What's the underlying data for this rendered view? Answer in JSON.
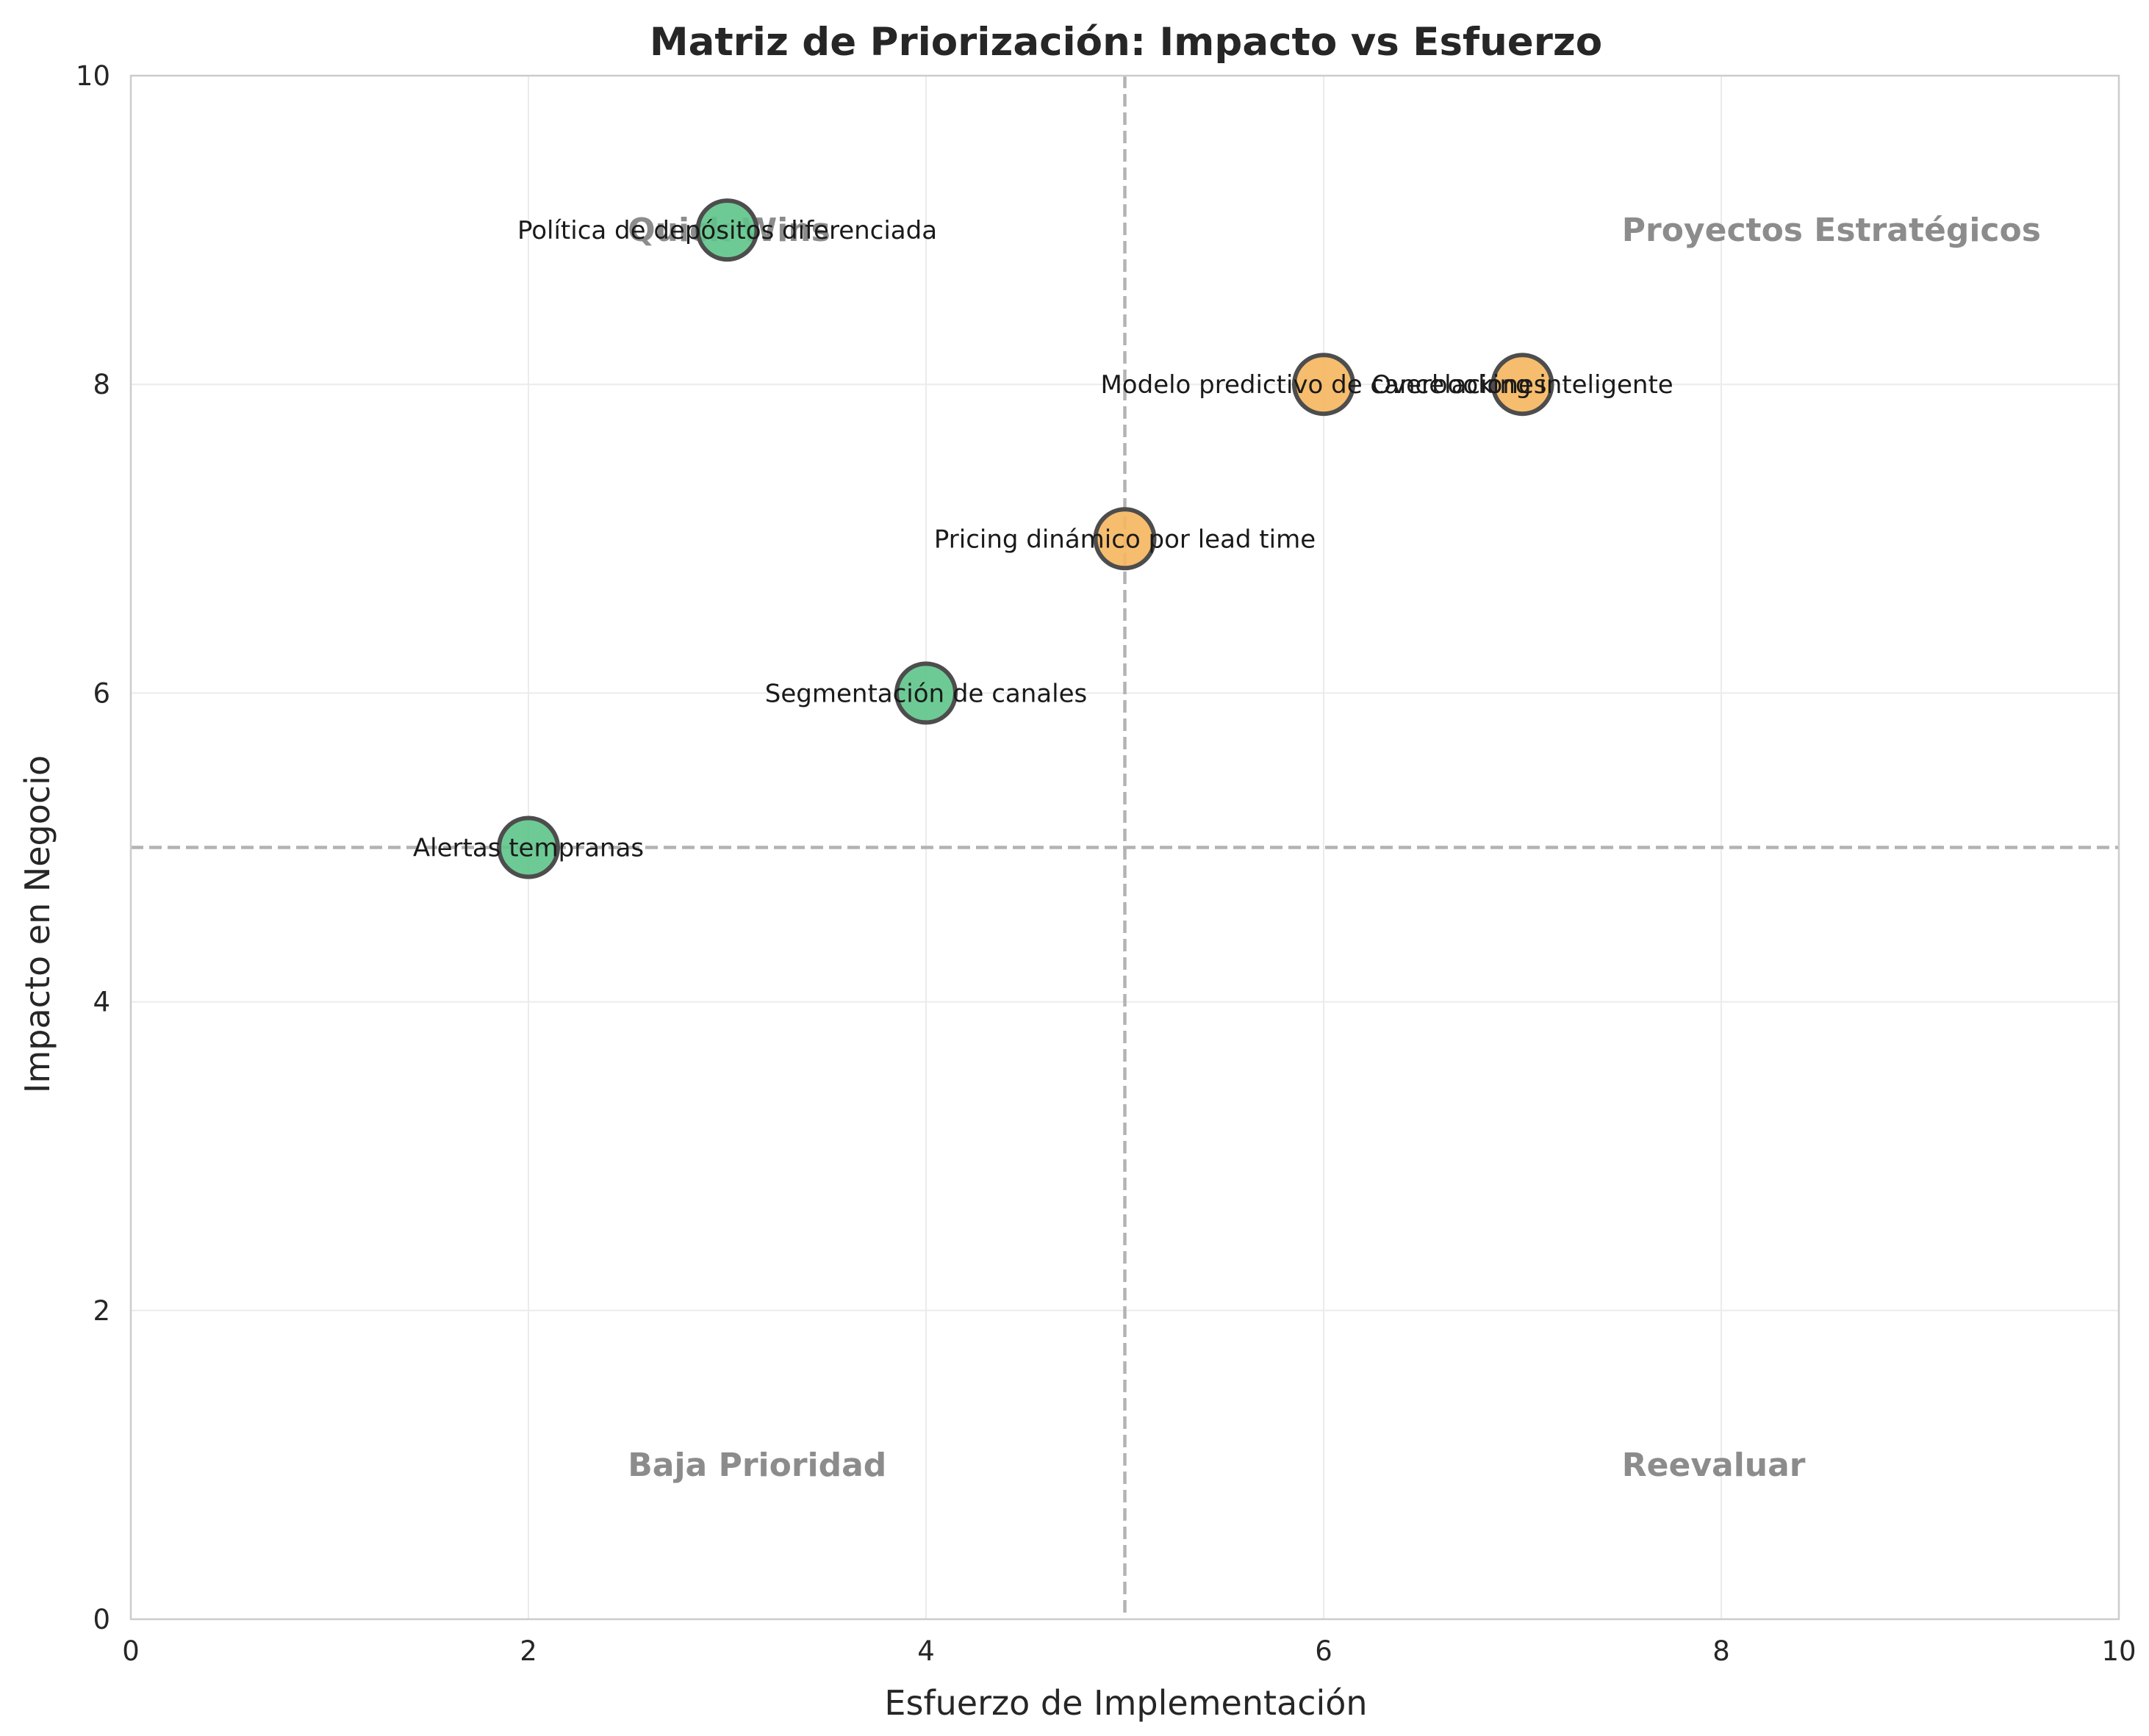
{
  "chart_data": {
    "type": "scatter",
    "title": "Matriz de Priorización: Impacto vs Esfuerzo",
    "xlabel": "Esfuerzo de Implementación",
    "ylabel": "Impacto en Negocio",
    "xlim": [
      0,
      10
    ],
    "ylim": [
      0,
      10
    ],
    "xticks": [
      "0",
      "2",
      "4",
      "6",
      "8",
      "10"
    ],
    "yticks": [
      "0",
      "2",
      "4",
      "6",
      "8",
      "10"
    ],
    "grid": true,
    "reference_lines": {
      "x": 5,
      "y": 5
    },
    "quadrant_labels": [
      {
        "text": "Quick Wins",
        "x": 2.5,
        "y": 9.0
      },
      {
        "text": "Proyectos Estratégicos",
        "x": 7.5,
        "y": 9.0
      },
      {
        "text": "Baja Prioridad",
        "x": 2.5,
        "y": 1.0
      },
      {
        "text": "Reevaluar",
        "x": 7.5,
        "y": 1.0
      }
    ],
    "points": [
      {
        "label": "Política de depósitos diferenciada",
        "x": 3,
        "y": 9,
        "color": "#5ec48a"
      },
      {
        "label": "Segmentación de canales",
        "x": 4,
        "y": 6,
        "color": "#5ec48a"
      },
      {
        "label": "Alertas tempranas",
        "x": 2,
        "y": 5,
        "color": "#5ec48a"
      },
      {
        "label": "Pricing dinámico por lead time",
        "x": 5,
        "y": 7,
        "color": "#f5b65e"
      },
      {
        "label": "Modelo predictivo de cancelaciones",
        "x": 6,
        "y": 8,
        "color": "#f5b65e"
      },
      {
        "label": "Overbooking inteligente",
        "x": 7,
        "y": 8,
        "color": "#f5b65e"
      }
    ]
  }
}
